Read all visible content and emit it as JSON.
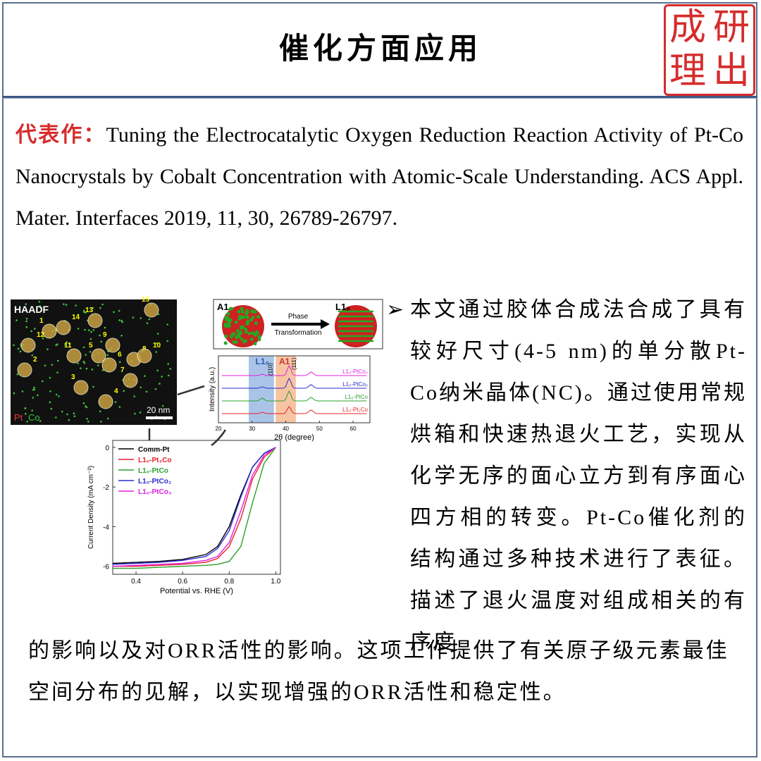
{
  "header": {
    "title": "催化方面应用",
    "stamp": [
      "成",
      "研",
      "理",
      "出"
    ]
  },
  "reference": {
    "label": "代表作：",
    "text": "Tuning the Electrocatalytic Oxygen Reduction Reaction Activity of Pt-Co Nanocrystals by Cobalt Concentration with Atomic-Scale Understanding. ACS Appl. Mater. Interfaces 2019, 11, 30, 26789-26797."
  },
  "figure": {
    "haadf": {
      "label": "HAADF",
      "scale": "20 nm",
      "elements": [
        "Pt",
        "Co"
      ],
      "particles": [
        1,
        2,
        3,
        4,
        5,
        6,
        7,
        8,
        9,
        10,
        11,
        12,
        13,
        14,
        15
      ]
    },
    "xrd": {
      "phase_from": "A1",
      "phase_to": "L1₀",
      "arrow_top": "Phase",
      "arrow_bottom": "Transformation",
      "ylabel": "Intensity (a.u.)",
      "xlabel": "2θ (degree)",
      "xlim": [
        20,
        65
      ],
      "xticks": [
        20,
        30,
        40,
        50,
        60
      ],
      "regions": [
        "L1₀",
        "A1"
      ],
      "peaks": [
        "(110)",
        "(111)"
      ],
      "series": [
        "L1₀-PtCo₃",
        "L1₀-PtCo₂",
        "L1₀-PtCo",
        "L1₀-Pt₃Co"
      ]
    },
    "chart_data": {
      "type": "line",
      "xlabel": "Potential vs. RHE (V)",
      "ylabel": "Current Density (mA cm⁻²)",
      "x": [
        0.3,
        0.4,
        0.5,
        0.6,
        0.7,
        0.75,
        0.8,
        0.85,
        0.9,
        0.95,
        1.0
      ],
      "xlim": [
        0.3,
        1.02
      ],
      "ylim": [
        -6.4,
        0.35
      ],
      "xticks": [
        0.4,
        0.6,
        0.8,
        {
          "value": 1,
          "label": "1.0"
        }
      ],
      "yticks": [
        0,
        -2,
        -4,
        -6
      ],
      "series": [
        {
          "name": "Comm-Pt",
          "color": "#000000",
          "values": [
            -5.85,
            -5.8,
            -5.75,
            -5.65,
            -5.4,
            -5.0,
            -4.0,
            -2.4,
            -1.0,
            -0.3,
            0
          ]
        },
        {
          "name": "L1₀-Pt₃Co",
          "color": "#e8202a",
          "values": [
            -6.0,
            -6.0,
            -5.95,
            -5.9,
            -5.8,
            -5.6,
            -5.0,
            -3.6,
            -1.6,
            -0.5,
            0
          ]
        },
        {
          "name": "L1₀-PtCo",
          "color": "#2ca02c",
          "values": [
            -6.1,
            -6.1,
            -6.05,
            -6.0,
            -5.95,
            -5.9,
            -5.75,
            -5.0,
            -2.8,
            -0.8,
            0
          ]
        },
        {
          "name": "L1₀-PtCo₂",
          "color": "#2b2bd0",
          "values": [
            -5.9,
            -5.85,
            -5.8,
            -5.7,
            -5.5,
            -5.1,
            -4.2,
            -2.5,
            -1.0,
            -0.3,
            0
          ]
        },
        {
          "name": "L1₀-PtCo₃",
          "color": "#e020e0",
          "values": [
            -6.0,
            -5.95,
            -5.9,
            -5.85,
            -5.7,
            -5.5,
            -4.8,
            -3.2,
            -1.4,
            -0.4,
            0
          ]
        }
      ]
    }
  },
  "summary": {
    "bullet": "➢",
    "side_text": "本文通过胶体合成法合成了具有较好尺寸(4-5 nm)的单分散Pt-Co纳米晶体(NC)。通过使用常规烘箱和快速热退火工艺，实现从化学无序的面心立方到有序面心四方相的转变。Pt-Co催化剂的结构通过多种技术进行了表征。描述了退火温度对组成相关的有序度",
    "bottom_text": "的影响以及对ORR活性的影响。这项工作提供了有关原子级元素最佳空间分布的见解，以实现增强的ORR活性和稳定性。"
  }
}
